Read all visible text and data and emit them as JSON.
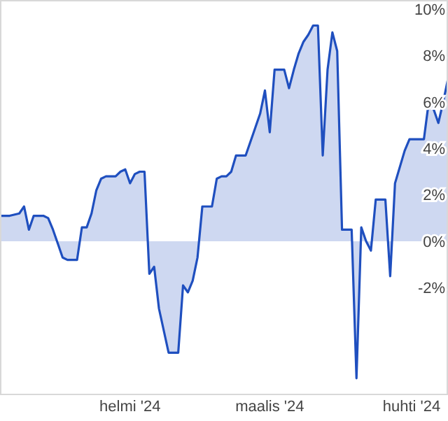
{
  "chart_data": {
    "type": "area",
    "color": "#1f4fbf",
    "x": [
      "2024-01-05",
      "2024-01-07",
      "2024-01-09",
      "2024-01-10",
      "2024-01-11",
      "2024-01-12",
      "2024-01-14",
      "2024-01-15",
      "2024-01-16",
      "2024-01-17",
      "2024-01-18",
      "2024-01-19",
      "2024-01-21",
      "2024-01-22",
      "2024-01-23",
      "2024-01-24",
      "2024-01-25",
      "2024-01-26",
      "2024-01-27",
      "2024-01-29",
      "2024-01-30",
      "2024-01-31",
      "2024-02-01",
      "2024-02-02",
      "2024-02-03",
      "2024-02-04",
      "2024-02-05",
      "2024-02-06",
      "2024-02-07",
      "2024-02-09",
      "2024-02-11",
      "2024-02-12",
      "2024-02-13",
      "2024-02-14",
      "2024-02-15",
      "2024-02-16",
      "2024-02-18",
      "2024-02-19",
      "2024-02-20",
      "2024-02-21",
      "2024-02-22",
      "2024-02-23",
      "2024-02-25",
      "2024-02-27",
      "2024-02-28",
      "2024-02-29",
      "2024-03-01",
      "2024-03-02",
      "2024-03-04",
      "2024-03-05",
      "2024-03-06",
      "2024-03-07",
      "2024-03-08",
      "2024-03-09",
      "2024-03-10",
      "2024-03-11",
      "2024-03-12",
      "2024-03-13",
      "2024-03-14",
      "2024-03-15",
      "2024-03-16",
      "2024-03-18",
      "2024-03-19",
      "2024-03-20",
      "2024-03-21",
      "2024-03-22",
      "2024-03-23",
      "2024-03-25",
      "2024-03-26",
      "2024-03-27",
      "2024-03-29",
      "2024-03-30",
      "2024-04-01",
      "2024-04-02",
      "2024-04-03",
      "2024-04-04",
      "2024-04-05",
      "2024-04-06",
      "2024-04-07"
    ],
    "values": [
      1.1,
      1.1,
      1.2,
      1.5,
      0.5,
      1.1,
      1.1,
      1.0,
      0.5,
      -0.1,
      -0.7,
      -0.8,
      -0.8,
      0.6,
      0.6,
      1.2,
      2.2,
      2.7,
      2.8,
      2.8,
      3.0,
      3.1,
      2.5,
      2.9,
      3.0,
      3.0,
      -1.4,
      -1.1,
      -2.9,
      -4.8,
      -4.8,
      -1.9,
      -2.2,
      -1.7,
      -0.7,
      1.5,
      1.5,
      2.7,
      2.8,
      2.8,
      3.0,
      3.7,
      3.7,
      4.9,
      5.5,
      6.5,
      4.7,
      7.4,
      7.4,
      6.6,
      7.4,
      8.1,
      8.6,
      8.9,
      9.3,
      9.3,
      3.7,
      7.4,
      9.0,
      8.2,
      0.5,
      0.5,
      -5.9,
      0.6,
      0.0,
      -0.4,
      1.8,
      1.8,
      -1.5,
      2.5,
      3.9,
      4.4,
      4.4,
      4.4,
      6.0,
      5.7,
      5.1,
      6.0,
      7.0
    ],
    "xlim": [
      "2024-01-05",
      "2024-04-07"
    ],
    "xticks": [
      {
        "value": "2024-02-01",
        "label": "helmi '24"
      },
      {
        "value": "2024-03-01",
        "label": "maalis '24"
      },
      {
        "value": "2024-04-01",
        "label": "huhti '24"
      }
    ],
    "ylim": [
      -6.6,
      10.4
    ],
    "yticks": [
      {
        "value": -2,
        "label": "-2%"
      },
      {
        "value": 0,
        "label": "0%"
      },
      {
        "value": 2,
        "label": "2%"
      },
      {
        "value": 4,
        "label": "4%"
      },
      {
        "value": 6,
        "label": "6%"
      },
      {
        "value": 8,
        "label": "8%"
      },
      {
        "value": 10,
        "label": "10%"
      }
    ]
  }
}
